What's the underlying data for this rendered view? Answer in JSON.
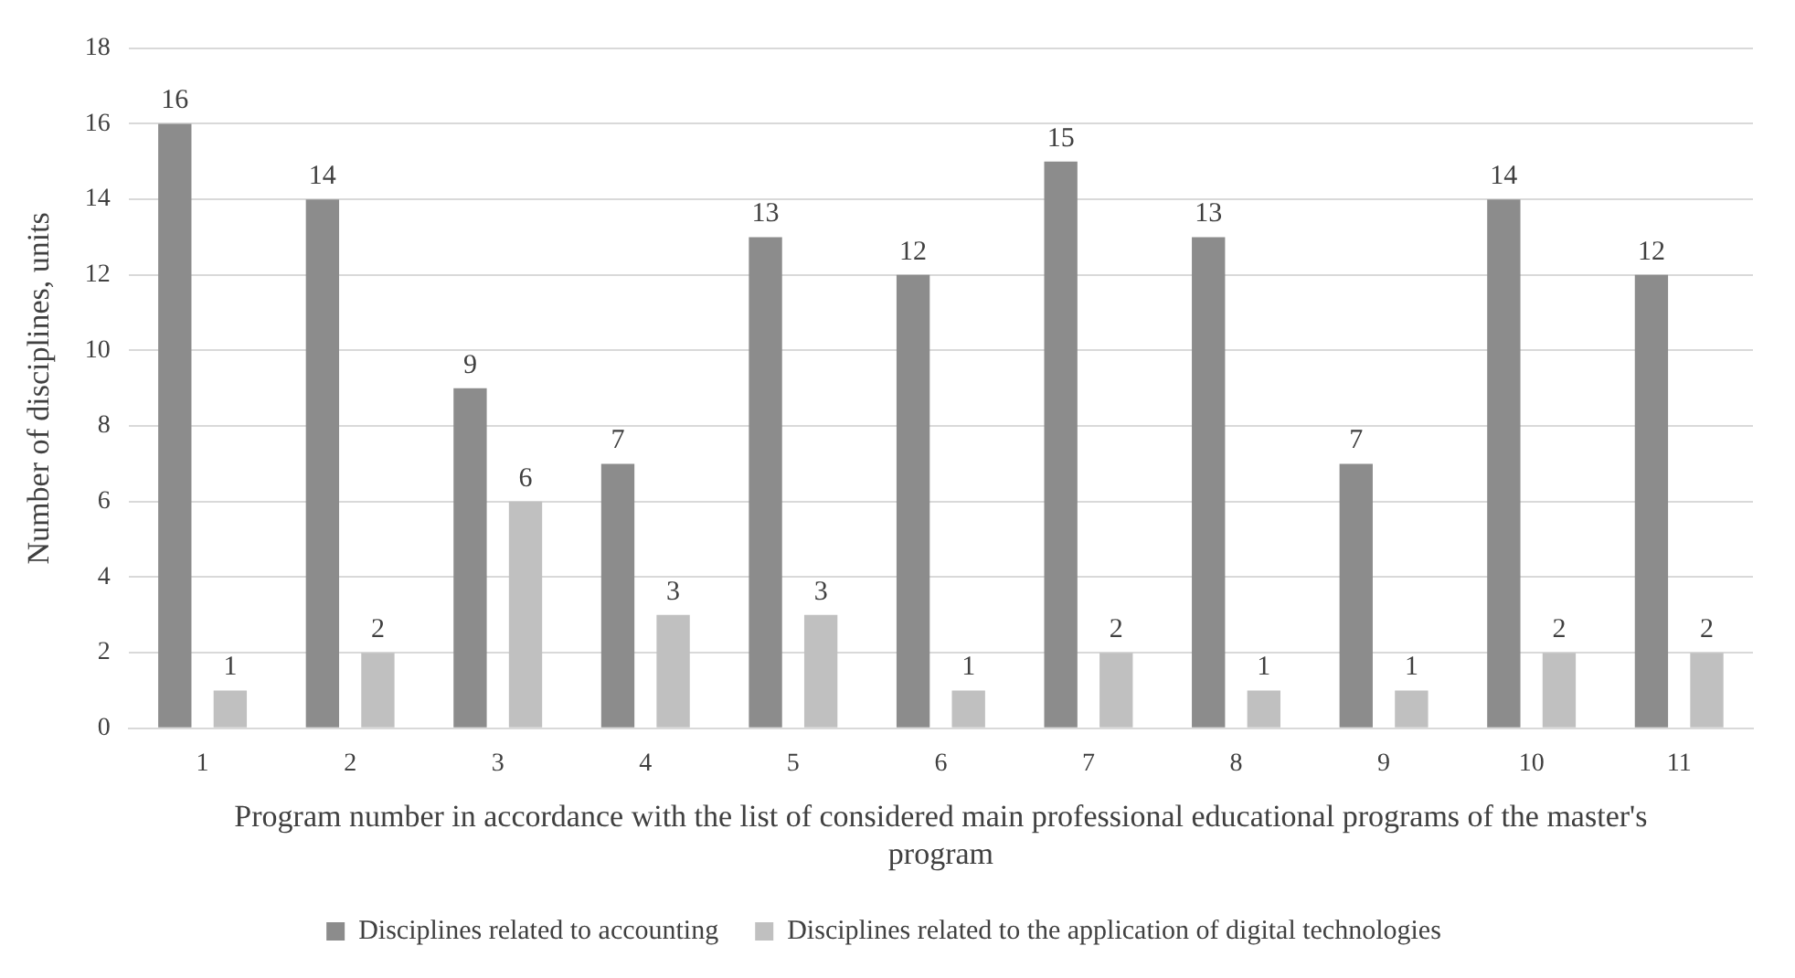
{
  "chart_data": {
    "type": "bar",
    "xlabel": "Program number in accordance with the list of considered main professional educational programs of the master's program",
    "ylabel": "Number of disciplines, units",
    "categories": [
      "1",
      "2",
      "3",
      "4",
      "5",
      "6",
      "7",
      "8",
      "9",
      "10",
      "11"
    ],
    "series": [
      {
        "name": "Disciplines related to accounting",
        "color": "#8c8c8c",
        "values": [
          16,
          14,
          9,
          7,
          13,
          12,
          15,
          13,
          7,
          14,
          12
        ]
      },
      {
        "name": "Disciplines related to the application of digital technologies",
        "color": "#c0c0c0",
        "values": [
          1,
          2,
          6,
          3,
          3,
          1,
          2,
          1,
          1,
          2,
          2
        ]
      }
    ],
    "ylim": [
      0,
      18
    ],
    "yticks": [
      0,
      2,
      4,
      6,
      8,
      10,
      12,
      14,
      16,
      18
    ],
    "grid": "y",
    "legend": "bottom",
    "data_labels": true
  }
}
